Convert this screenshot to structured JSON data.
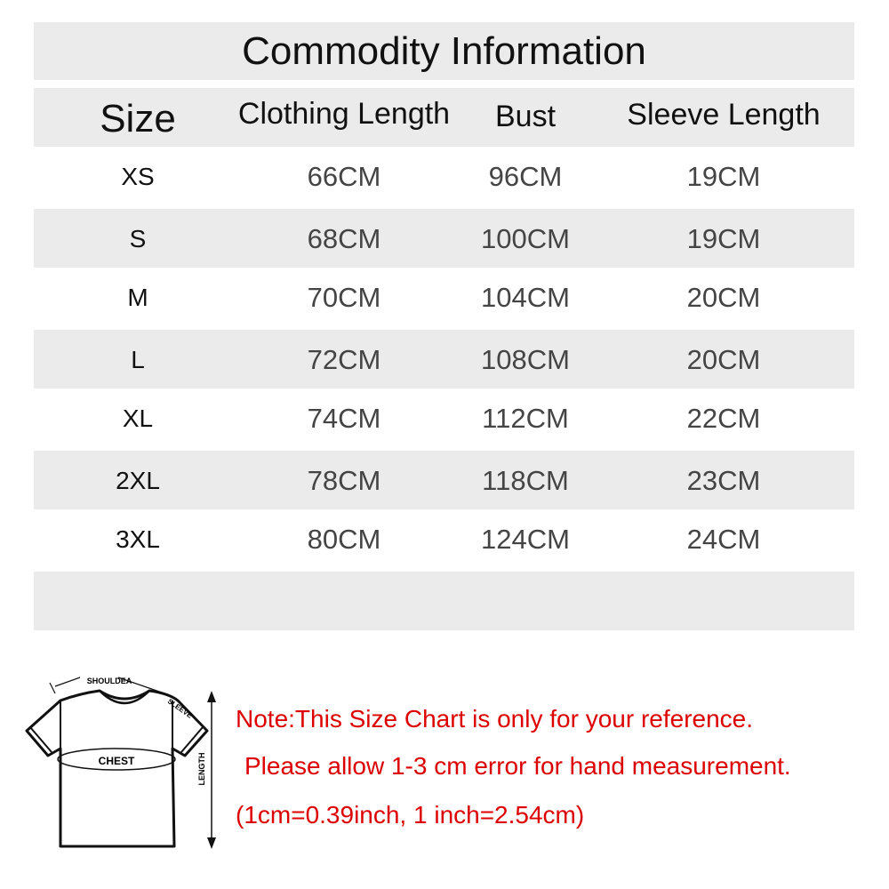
{
  "title": "Commodity Information",
  "headers": [
    "Size",
    "Clothing Length",
    "Bust",
    "Sleeve Length"
  ],
  "rows": [
    {
      "size": "XS",
      "length": "66CM",
      "bust": "96CM",
      "sleeve": "19CM"
    },
    {
      "size": "S",
      "length": "68CM",
      "bust": "100CM",
      "sleeve": "19CM"
    },
    {
      "size": "M",
      "length": "70CM",
      "bust": "104CM",
      "sleeve": "20CM"
    },
    {
      "size": "L",
      "length": "72CM",
      "bust": "108CM",
      "sleeve": "20CM"
    },
    {
      "size": "XL",
      "length": "74CM",
      "bust": "112CM",
      "sleeve": "22CM"
    },
    {
      "size": "2XL",
      "length": "78CM",
      "bust": "118CM",
      "sleeve": "23CM"
    },
    {
      "size": "3XL",
      "length": "80CM",
      "bust": "124CM",
      "sleeve": "24CM"
    }
  ],
  "diagram": {
    "shoulder": "SHOULDEA",
    "sleeve": "SLEEVE",
    "chest": "CHEST",
    "length": "LENGTH"
  },
  "notes": [
    "Note:This Size Chart is only for your reference.",
    "Please allow 1-3 cm error for hand measurement.",
    "(1cm=0.39inch, 1 inch=2.54cm)"
  ],
  "colors": {
    "band": "#ebebeb",
    "note": "#dd0000",
    "value": "#444444"
  }
}
